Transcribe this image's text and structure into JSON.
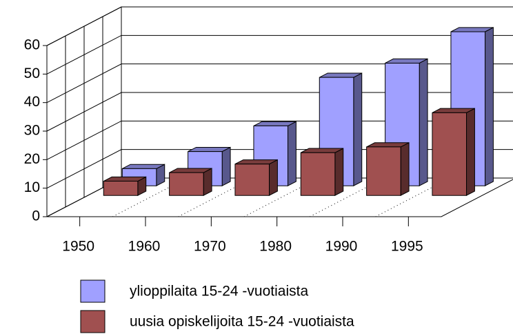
{
  "chart_data": {
    "type": "bar3d",
    "categories": [
      "1950",
      "1960",
      "1970",
      "1980",
      "1990",
      "1995"
    ],
    "series": [
      {
        "name": "ylioppilaita 15-24 -vuotiaista",
        "color": "#a0a0ff",
        "values": [
          6,
          12,
          21,
          38,
          43,
          54
        ]
      },
      {
        "name": "uusia opiskelijoita 15-24 -vuotiaista",
        "color": "#a05050",
        "values": [
          5,
          8,
          11,
          15,
          17,
          29
        ]
      }
    ],
    "ylim": [
      0,
      60
    ],
    "yticks": [
      0,
      10,
      20,
      30,
      40,
      50,
      60
    ],
    "grid": true,
    "legend": "bottom"
  }
}
